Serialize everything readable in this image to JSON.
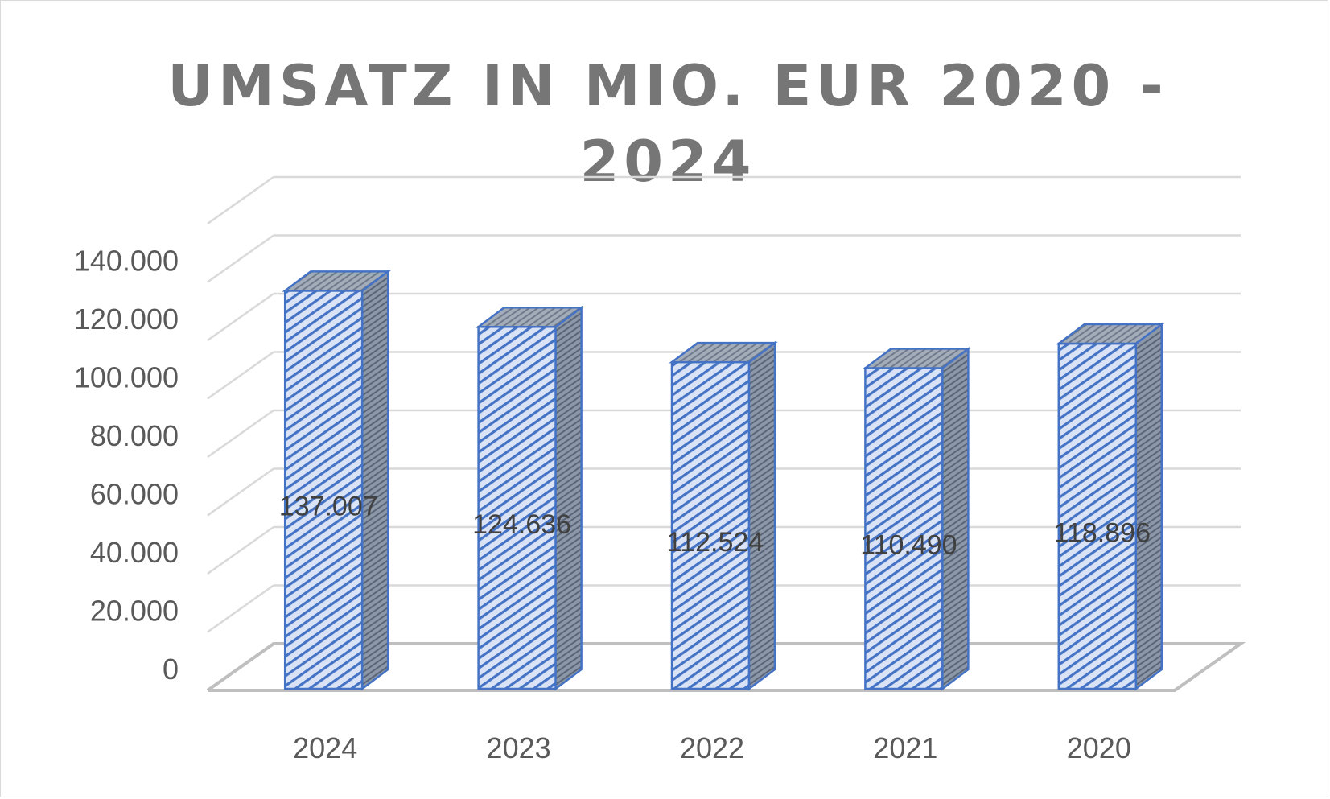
{
  "chart_data": {
    "type": "bar",
    "title": "UMSATZ IN MIO. EUR 2020 - 2024",
    "xlabel": "",
    "ylabel": "",
    "categories": [
      "2024",
      "2023",
      "2022",
      "2021",
      "2020"
    ],
    "values": [
      137007,
      124636,
      112524,
      110490,
      118896
    ],
    "value_labels": [
      "137.007",
      "124.636",
      "112.524",
      "110.490",
      "118.896"
    ],
    "y_ticks": [
      0,
      20000,
      40000,
      60000,
      80000,
      100000,
      120000,
      140000
    ],
    "y_tick_labels": [
      "0",
      "20.000",
      "40.000",
      "60.000",
      "80.000",
      "100.000",
      "120.000",
      "140.000"
    ],
    "ylim": [
      0,
      160000
    ],
    "grid": true,
    "legend": "none",
    "style": "3d-column-hatched",
    "colors": {
      "bar_front": "#dae3f5",
      "bar_hatch": "#4472c4",
      "bar_side": "#8c97a8",
      "bar_top": "#a3acb9",
      "bar_outline": "#4472c4",
      "grid": "#d9d9d9",
      "floor": "#bfbfbf",
      "title": "#767676",
      "tick_text": "#595959",
      "data_label": "#404040"
    }
  }
}
